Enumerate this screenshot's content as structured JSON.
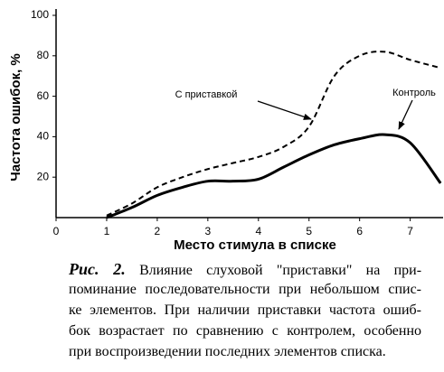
{
  "chart_data": {
    "type": "line",
    "x_label": "Место стимула в списке",
    "y_label": "Частота ошибок, %",
    "xlim": [
      0,
      7.65
    ],
    "ylim": [
      0,
      100
    ],
    "xticks": [
      0,
      1,
      2,
      3,
      4,
      5,
      6,
      7
    ],
    "yticks": [
      20,
      40,
      60,
      80,
      100
    ],
    "x": [
      1,
      1.5,
      2,
      2.5,
      3,
      3.5,
      4,
      4.5,
      5,
      5.5,
      6,
      6.5,
      7,
      7.6
    ],
    "series": [
      {
        "name": "С приставкой",
        "color": "#000000",
        "style": "dashed",
        "values": [
          1,
          7,
          15,
          20,
          24,
          27,
          30,
          35,
          45,
          70,
          80,
          82,
          78,
          74
        ]
      },
      {
        "name": "Контроль",
        "color": "#000000",
        "style": "solid",
        "values": [
          0,
          5,
          11,
          15,
          18,
          18,
          19,
          25,
          31,
          36,
          39,
          41,
          37,
          17
        ]
      }
    ],
    "caption": {
      "label": "Рис. 2.",
      "lines": [
        "Влияние слуховой \"приставки\" на при-",
        "поминание последовательности при небольшом спис-",
        "ке элементов. При наличии приставки частота ошиб-",
        "бок возрастает по сравнению с контролем, особенно",
        "при воспроизведении последних элементов списка."
      ]
    }
  }
}
